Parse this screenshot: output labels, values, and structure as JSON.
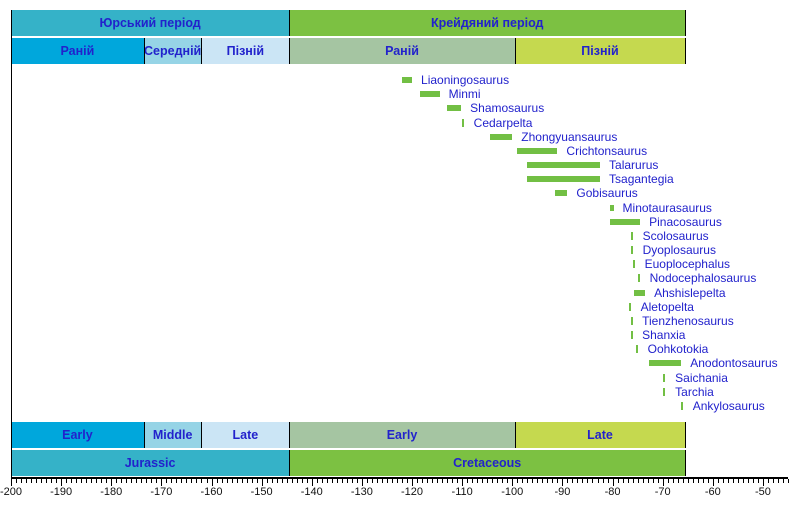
{
  "chart_data": {
    "type": "timeline",
    "subject": "ankylosaur-genera-geologic-ranges",
    "axis": {
      "min": -200,
      "max": -45,
      "minor_step": 1,
      "major_step": 10,
      "major_tick_labels": [
        "-200",
        "-190",
        "-180",
        "-170",
        "-160",
        "-150",
        "-140",
        "-130",
        "-120",
        "-110",
        "-100",
        "-90",
        "-80",
        "-70",
        "-60",
        "-50"
      ]
    },
    "colors": {
      "jurassic": "#35b2c8",
      "cretaceous": "#7cc142",
      "early_jurassic": "#00a7dc",
      "middle_jurassic": "#96d4e6",
      "late_jurassic": "#cbe5f5",
      "early_cretaceous": "#a5c5a2",
      "late_cretaceous": "#c5d94f",
      "taxon_bar": "#72bf44",
      "label_blue": "#2222cc",
      "axis_text": "#111111",
      "line": "#000000"
    },
    "bands": [
      {
        "id": "periods_uk",
        "segments": [
          {
            "label": "Юрський період",
            "from": -200,
            "to": -144.5,
            "color": "jurassic"
          },
          {
            "label": "Крейдяний період",
            "from": -144.5,
            "to": -65.5,
            "color": "cretaceous"
          }
        ]
      },
      {
        "id": "epochs_uk",
        "segments": [
          {
            "label": "Раній",
            "from": -200,
            "to": -173.5,
            "color": "early_jurassic"
          },
          {
            "label": "Середній",
            "from": -173.5,
            "to": -162,
            "color": "middle_jurassic"
          },
          {
            "label": "Пізній",
            "from": -162,
            "to": -144.5,
            "color": "late_jurassic"
          },
          {
            "label": "Раній",
            "from": -144.5,
            "to": -99.5,
            "color": "early_cretaceous"
          },
          {
            "label": "Пізній",
            "from": -99.5,
            "to": -65.5,
            "color": "late_cretaceous"
          }
        ]
      },
      {
        "id": "epochs_en",
        "segments": [
          {
            "label": "Early",
            "from": -200,
            "to": -173.5,
            "color": "early_jurassic"
          },
          {
            "label": "Middle",
            "from": -173.5,
            "to": -162,
            "color": "middle_jurassic"
          },
          {
            "label": "Late",
            "from": -162,
            "to": -144.5,
            "color": "late_jurassic"
          },
          {
            "label": "Early",
            "from": -144.5,
            "to": -99.5,
            "color": "early_cretaceous"
          },
          {
            "label": "Late",
            "from": -99.5,
            "to": -65.5,
            "color": "late_cretaceous"
          }
        ]
      },
      {
        "id": "periods_en",
        "segments": [
          {
            "label": "Jurassic",
            "from": -200,
            "to": -144.5,
            "color": "jurassic"
          },
          {
            "label": "Cretaceous",
            "from": -144.5,
            "to": -65.5,
            "color": "cretaceous"
          }
        ]
      }
    ],
    "taxa": [
      {
        "name": "Liaoningosaurus",
        "from": -122,
        "to": -120
      },
      {
        "name": "Minmi",
        "from": -118.5,
        "to": -114.5
      },
      {
        "name": "Shamosaurus",
        "from": -113,
        "to": -110.2
      },
      {
        "name": "Cedarpelta",
        "from": -110,
        "to": -109.5
      },
      {
        "name": "Zhongyuansaurus",
        "from": -104.5,
        "to": -100
      },
      {
        "name": "Crichtonsaurus",
        "from": -99,
        "to": -91
      },
      {
        "name": "Talarurus",
        "from": -97,
        "to": -82.5
      },
      {
        "name": "Tsagantegia",
        "from": -97,
        "to": -82.5
      },
      {
        "name": "Gobisaurus",
        "from": -91.5,
        "to": -89
      },
      {
        "name": "Minotaurasaurus",
        "from": -80.5,
        "to": -79.8
      },
      {
        "name": "Pinacosaurus",
        "from": -80.5,
        "to": -74.5
      },
      {
        "name": "Scolosaurus",
        "from": -76.3,
        "to": -75.8
      },
      {
        "name": "Dyoplosaurus",
        "from": -76.3,
        "to": -75.8
      },
      {
        "name": "Euoplocephalus",
        "from": -75.9,
        "to": -75.4
      },
      {
        "name": "Nodocephalosaurus",
        "from": -74.9,
        "to": -74.4
      },
      {
        "name": "Ahshislepelta",
        "from": -75.7,
        "to": -73.5
      },
      {
        "name": "Aletopelta",
        "from": -76.7,
        "to": -76.2
      },
      {
        "name": "Tienzhenosaurus",
        "from": -76.4,
        "to": -75.9
      },
      {
        "name": "Shanxia",
        "from": -76.4,
        "to": -75.9
      },
      {
        "name": "Oohkotokia",
        "from": -75.3,
        "to": -74.8
      },
      {
        "name": "Anodontosaurus",
        "from": -72.7,
        "to": -66.3
      },
      {
        "name": "Saichania",
        "from": -69.9,
        "to": -69.3
      },
      {
        "name": "Tarchia",
        "from": -69.9,
        "to": -69.3
      },
      {
        "name": "Ankylosaurus",
        "from": -66.3,
        "to": -65.8
      }
    ]
  }
}
